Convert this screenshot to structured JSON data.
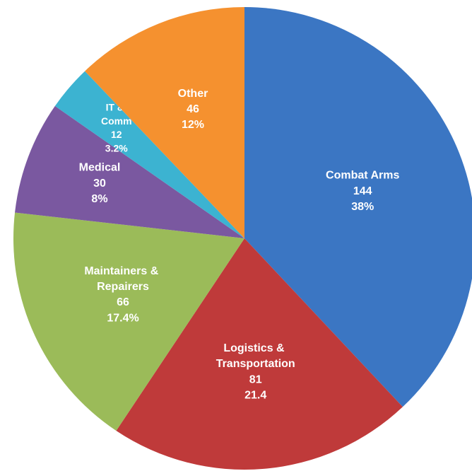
{
  "chart_data": {
    "type": "pie",
    "categories": [
      "Combat Arms",
      "Logistics & Transportation",
      "Maintainers & Repairers",
      "Medical",
      "IT & Comm",
      "Other"
    ],
    "values": [
      144,
      81,
      66,
      30,
      12,
      46
    ],
    "percentages": [
      {
        "value": 38,
        "label": "38%"
      },
      21.4,
      {
        "value": 17.4,
        "label": "17.4%"
      },
      {
        "value": 8,
        "label": "8%"
      },
      {
        "value": 3.2,
        "label": "3.2%"
      },
      {
        "value": 12,
        "label": "12%"
      }
    ],
    "colors": [
      "#3b76c3",
      "#bf3a3a",
      "#9bbb59",
      "#7a58a0",
      "#3cb3d1",
      "#f5912f"
    ]
  }
}
